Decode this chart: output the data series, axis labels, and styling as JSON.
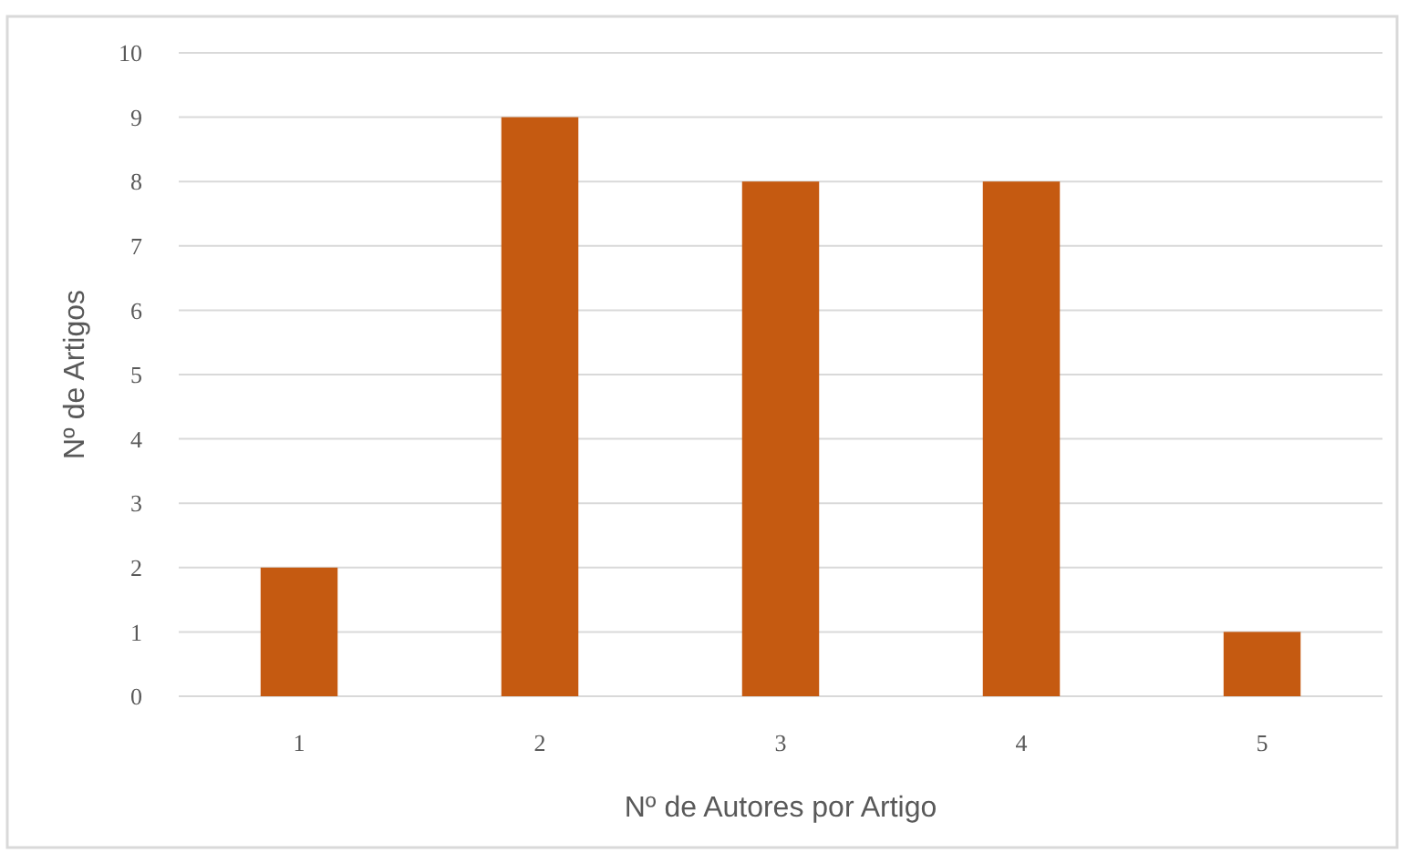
{
  "chart_data": {
    "type": "bar",
    "xlabel": "Nº de Autores por Artigo",
    "ylabel": "Nº de Artigos",
    "categories": [
      "1",
      "2",
      "3",
      "4",
      "5"
    ],
    "values": [
      2,
      9,
      8,
      8,
      1
    ],
    "color": "#c55a11",
    "ylim": [
      0,
      10
    ],
    "yticks": [
      0,
      1,
      2,
      3,
      4,
      5,
      6,
      7,
      8,
      9,
      10
    ],
    "grid": "y"
  }
}
